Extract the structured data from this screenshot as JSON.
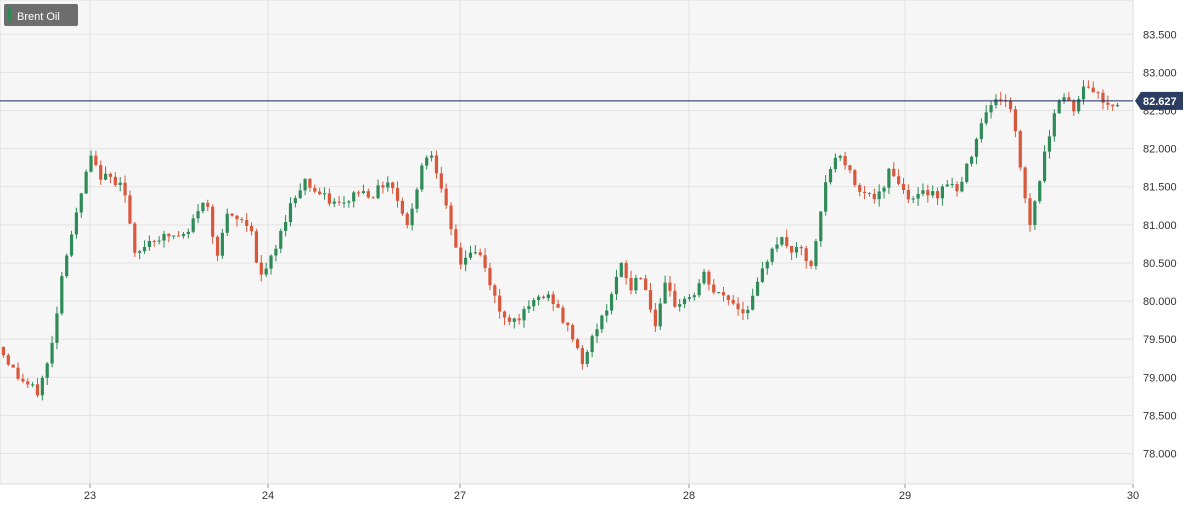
{
  "chart_data": {
    "type": "candlestick",
    "title": "Brent Oil",
    "last_price": 82.627,
    "last_price_label": "82.627",
    "y_ticks": [
      78.0,
      78.5,
      79.0,
      79.5,
      80.0,
      80.5,
      81.0,
      81.5,
      82.0,
      82.5,
      83.0,
      83.5
    ],
    "y_tick_labels": [
      "78.000",
      "78.500",
      "79.000",
      "79.500",
      "80.000",
      "80.500",
      "81.000",
      "81.500",
      "82.000",
      "82.500",
      "83.000",
      "83.500"
    ],
    "x_tick_labels": [
      "23",
      "24",
      "27",
      "28",
      "29",
      "30"
    ],
    "ylim": [
      77.6,
      83.95
    ],
    "grid": true,
    "colors": {
      "up": "#2e8b57",
      "down": "#d9573b",
      "price_line": "#1a2a5a",
      "badge": "#2b3d63",
      "legend_bg": "#6d6d6d"
    },
    "series_path": [
      [
        0,
        79.4
      ],
      [
        0.3,
        79.0
      ],
      [
        0.6,
        78.8
      ],
      [
        0.8,
        79.3
      ],
      [
        1.0,
        80.5
      ],
      [
        1.25,
        81.3
      ],
      [
        1.4,
        81.9
      ],
      [
        1.55,
        81.65
      ],
      [
        1.8,
        81.58
      ],
      [
        1.9,
        81.6
      ],
      [
        2.0,
        81.1
      ],
      [
        2.1,
        80.55
      ],
      [
        2.3,
        80.8
      ],
      [
        2.6,
        80.85
      ],
      [
        2.9,
        80.85
      ],
      [
        3.05,
        81.2
      ],
      [
        3.2,
        81.3
      ],
      [
        3.35,
        80.6
      ],
      [
        3.5,
        81.1
      ],
      [
        3.75,
        81.05
      ],
      [
        3.9,
        80.95
      ],
      [
        4.0,
        80.25
      ],
      [
        4.25,
        80.65
      ],
      [
        4.45,
        81.2
      ],
      [
        4.7,
        81.6
      ],
      [
        4.85,
        81.45
      ],
      [
        5.1,
        81.3
      ],
      [
        5.3,
        81.25
      ],
      [
        5.5,
        81.45
      ],
      [
        5.75,
        81.4
      ],
      [
        6.0,
        81.6
      ],
      [
        6.2,
        81.2
      ],
      [
        6.3,
        80.95
      ],
      [
        6.5,
        81.8
      ],
      [
        6.65,
        81.95
      ],
      [
        6.8,
        81.55
      ],
      [
        6.95,
        80.9
      ],
      [
        7.1,
        80.5
      ],
      [
        7.25,
        80.65
      ],
      [
        7.4,
        80.6
      ],
      [
        7.55,
        80.25
      ],
      [
        7.7,
        79.85
      ],
      [
        7.9,
        79.75
      ],
      [
        8.1,
        79.85
      ],
      [
        8.3,
        80.05
      ],
      [
        8.5,
        80.05
      ],
      [
        8.7,
        79.7
      ],
      [
        8.85,
        79.5
      ],
      [
        9.0,
        79.15
      ],
      [
        9.15,
        79.6
      ],
      [
        9.3,
        79.8
      ],
      [
        9.45,
        80.2
      ],
      [
        9.6,
        80.5
      ],
      [
        9.7,
        80.1
      ],
      [
        9.85,
        80.4
      ],
      [
        10.0,
        80.0
      ],
      [
        10.1,
        79.65
      ],
      [
        10.25,
        80.2
      ],
      [
        10.4,
        79.95
      ],
      [
        10.5,
        80.0
      ],
      [
        10.7,
        80.1
      ],
      [
        10.85,
        80.35
      ],
      [
        11.0,
        80.1
      ],
      [
        11.2,
        80.05
      ],
      [
        11.45,
        79.85
      ],
      [
        11.6,
        80.05
      ],
      [
        11.75,
        80.4
      ],
      [
        11.9,
        80.75
      ],
      [
        12.05,
        80.8
      ],
      [
        12.2,
        80.65
      ],
      [
        12.35,
        80.65
      ],
      [
        12.5,
        80.4
      ],
      [
        12.6,
        80.95
      ],
      [
        12.7,
        81.5
      ],
      [
        12.85,
        81.9
      ],
      [
        13.0,
        81.85
      ],
      [
        13.15,
        81.55
      ],
      [
        13.3,
        81.45
      ],
      [
        13.45,
        81.35
      ],
      [
        13.6,
        81.4
      ],
      [
        13.7,
        81.8
      ],
      [
        13.8,
        81.6
      ],
      [
        13.95,
        81.4
      ],
      [
        14.1,
        81.35
      ],
      [
        14.3,
        81.45
      ],
      [
        14.45,
        81.4
      ],
      [
        14.6,
        81.6
      ],
      [
        14.75,
        81.4
      ],
      [
        14.9,
        81.8
      ],
      [
        15.05,
        82.2
      ],
      [
        15.15,
        82.5
      ],
      [
        15.3,
        82.6
      ],
      [
        15.45,
        82.7
      ],
      [
        15.6,
        82.4
      ],
      [
        15.75,
        81.5
      ],
      [
        15.85,
        81.0
      ],
      [
        15.95,
        81.4
      ],
      [
        16.1,
        82.0
      ],
      [
        16.25,
        82.6
      ],
      [
        16.4,
        82.7
      ],
      [
        16.55,
        82.5
      ],
      [
        16.7,
        82.85
      ],
      [
        16.85,
        82.75
      ],
      [
        17.0,
        82.6
      ],
      [
        17.2,
        82.6
      ]
    ]
  },
  "legend": {
    "label": "Brent Oil"
  }
}
